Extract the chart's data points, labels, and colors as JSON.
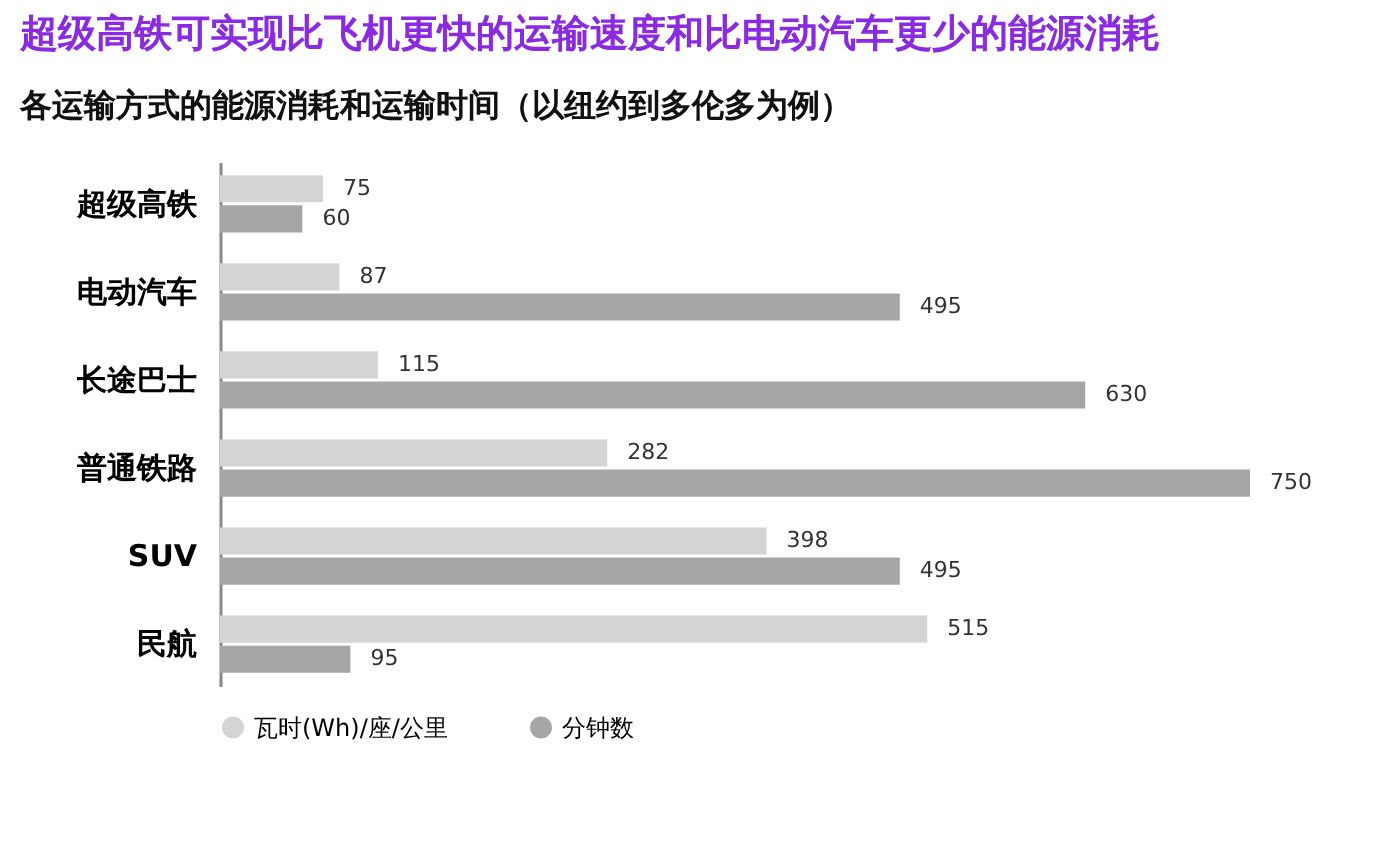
{
  "chart_data": {
    "type": "bar",
    "orientation": "horizontal",
    "title": "超级高铁可实现比飞机更快的运输速度和比电动汽车更少的能源消耗",
    "subtitle": "各运输方式的能源消耗和运输时间（以纽约到多伦多为例）",
    "categories": [
      "超级高铁",
      "电动汽车",
      "长途巴士",
      "普通铁路",
      "SUV",
      "民航"
    ],
    "series": [
      {
        "name": "瓦时(Wh)/座/公里",
        "color": "#d4d4d4",
        "values": [
          75,
          87,
          115,
          282,
          398,
          515
        ]
      },
      {
        "name": "分钟数",
        "color": "#a6a6a6",
        "values": [
          60,
          495,
          630,
          750,
          495,
          95
        ]
      }
    ],
    "data_labels": true,
    "legend": "bottom left",
    "tick_labels": "y"
  }
}
